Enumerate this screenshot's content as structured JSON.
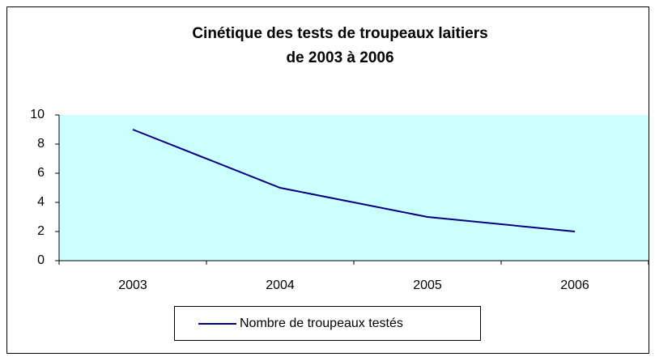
{
  "chart_data": {
    "type": "line",
    "title": [
      "Cinétique des tests de troupeaux laitiers",
      "de 2003 à 2006"
    ],
    "categories": [
      "2003",
      "2004",
      "2005",
      "2006"
    ],
    "series": [
      {
        "name": "Nombre de troupeaux testés",
        "color": "#000080",
        "values": [
          9,
          5,
          3,
          2
        ]
      }
    ],
    "ylim": [
      0,
      10
    ],
    "yticks": [
      0,
      2,
      4,
      6,
      8,
      10
    ],
    "grid": false,
    "plot_background": "#ccffff",
    "legend": "bottom"
  }
}
